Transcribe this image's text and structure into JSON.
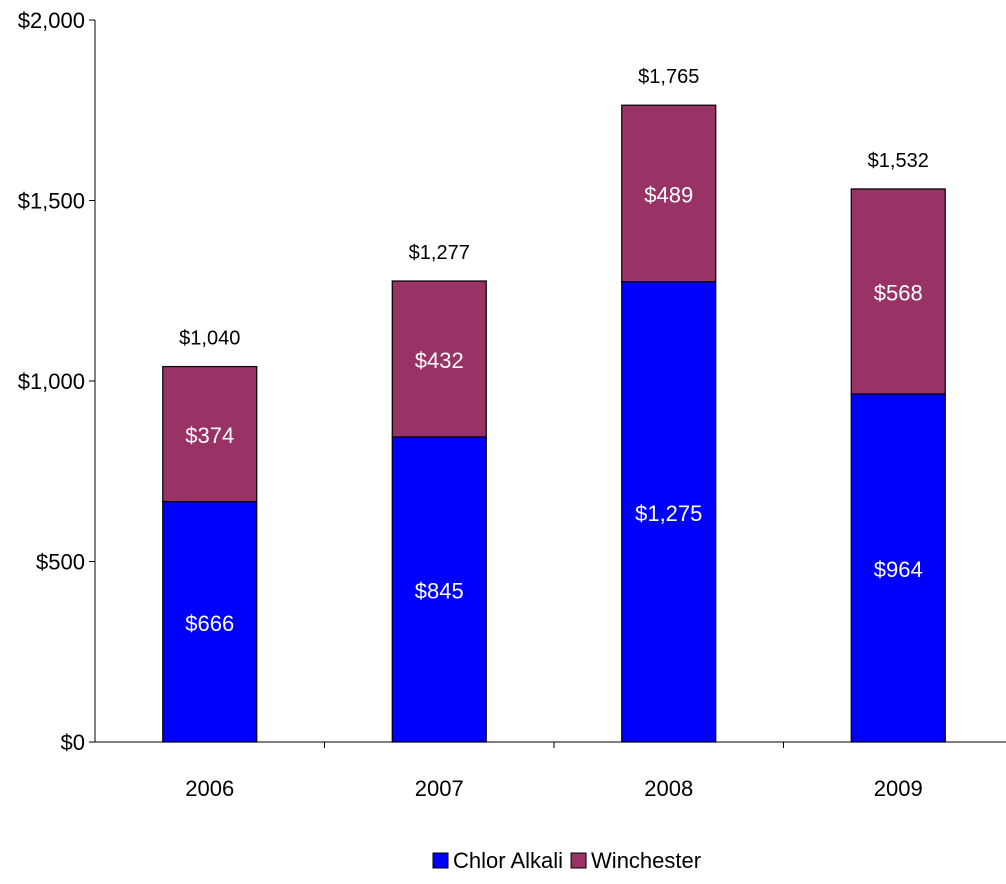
{
  "chart_data": {
    "type": "bar",
    "stacked": true,
    "categories": [
      "2006",
      "2007",
      "2008",
      "2009"
    ],
    "series": [
      {
        "name": "Chlor Alkali",
        "values": [
          666,
          845,
          1275,
          964
        ],
        "color": "#0000FF",
        "value_labels": [
          "$666",
          "$845",
          "$1,275",
          "$964"
        ]
      },
      {
        "name": "Winchester",
        "values": [
          374,
          432,
          489,
          568
        ],
        "color": "#993366",
        "value_labels": [
          "$374",
          "$432",
          "$489",
          "$568"
        ]
      }
    ],
    "totals": [
      1040,
      1277,
      1765,
      1532
    ],
    "total_labels": [
      "$1,040",
      "$1,277",
      "$1,765",
      "$1,532"
    ],
    "ylim": [
      0,
      2000
    ],
    "yticks": [
      0,
      500,
      1000,
      1500,
      2000
    ],
    "ytick_labels": [
      "$0",
      "$500",
      "$1,000",
      "$1,500",
      "$2,000"
    ],
    "title": "",
    "xlabel": "",
    "ylabel": "",
    "grid": false,
    "legend_position": "bottom-center"
  }
}
